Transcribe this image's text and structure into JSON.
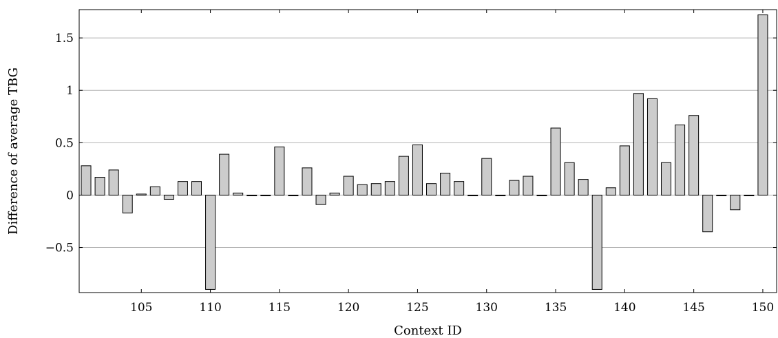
{
  "chart_data": {
    "type": "bar",
    "title": "",
    "xlabel": "Context ID",
    "ylabel": "Difference of average TBG",
    "xlim": [
      100.5,
      151
    ],
    "ylim": [
      -0.93,
      1.77
    ],
    "x_ticks": [
      105,
      110,
      115,
      120,
      125,
      130,
      135,
      140,
      145,
      150
    ],
    "y_ticks": [
      -0.5,
      0,
      0.5,
      1,
      1.5
    ],
    "y_tick_labels": [
      "−0.5",
      "0",
      "0.5",
      "1",
      "1.5"
    ],
    "grid": "horizontal",
    "bar_color": "#cccccc",
    "bar_edge_color": "#000000",
    "x": [
      101,
      102,
      103,
      104,
      105,
      106,
      107,
      108,
      109,
      110,
      111,
      112,
      113,
      114,
      115,
      116,
      117,
      118,
      119,
      120,
      121,
      122,
      123,
      124,
      125,
      126,
      127,
      128,
      129,
      130,
      131,
      132,
      133,
      134,
      135,
      136,
      137,
      138,
      139,
      140,
      141,
      142,
      143,
      144,
      145,
      146,
      147,
      148,
      149,
      150
    ],
    "values": [
      0.28,
      0.17,
      0.24,
      -0.17,
      0.01,
      0.08,
      -0.04,
      0.13,
      0.13,
      -0.9,
      0.39,
      0.02,
      0.0,
      0.0,
      0.46,
      0.0,
      0.26,
      -0.09,
      0.02,
      0.18,
      0.1,
      0.11,
      0.13,
      0.37,
      0.48,
      0.11,
      0.21,
      0.13,
      0.0,
      0.35,
      0.0,
      0.14,
      0.18,
      0.0,
      0.64,
      0.31,
      0.15,
      -0.9,
      0.07,
      0.47,
      0.97,
      0.92,
      0.31,
      0.67,
      0.76,
      -0.35,
      0.0,
      -0.14,
      0.0,
      1.72
    ]
  }
}
